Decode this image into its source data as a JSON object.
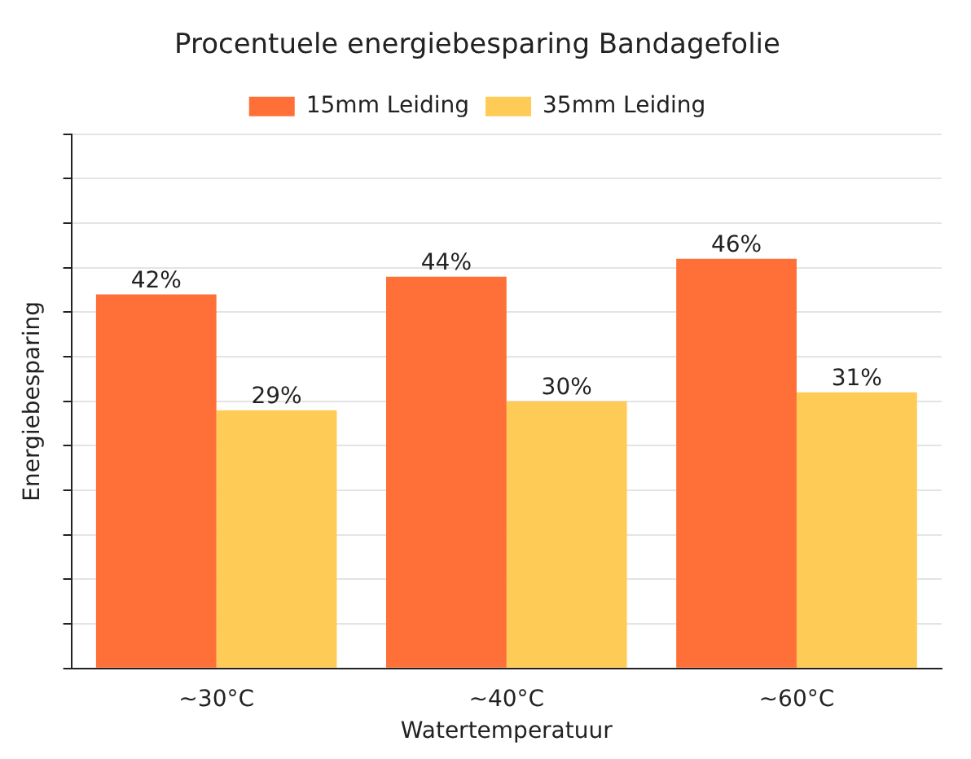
{
  "chart_data": {
    "type": "bar",
    "title": "Procentuele energiebesparing Bandagefolie",
    "xlabel": "Watertemperatuur",
    "ylabel": "Energiebesparing",
    "categories": [
      "~30°C",
      "~40°C",
      "~60°C"
    ],
    "series": [
      {
        "name": "15mm Leiding",
        "color": "#ff7038",
        "values": [
          42,
          44,
          46
        ],
        "value_labels": [
          "42%",
          "44%",
          "46%"
        ]
      },
      {
        "name": "35mm Leiding",
        "color": "#ffcb57",
        "values": [
          29,
          30,
          31
        ],
        "value_labels": [
          "29%",
          "30%",
          "31%"
        ]
      }
    ],
    "ylim": [
      0,
      60
    ],
    "yticks": [
      0,
      5,
      10,
      15,
      20,
      25,
      30,
      35,
      40,
      45,
      50,
      55,
      60
    ],
    "tick_labels": "x",
    "grid": "y",
    "legend": "top"
  }
}
